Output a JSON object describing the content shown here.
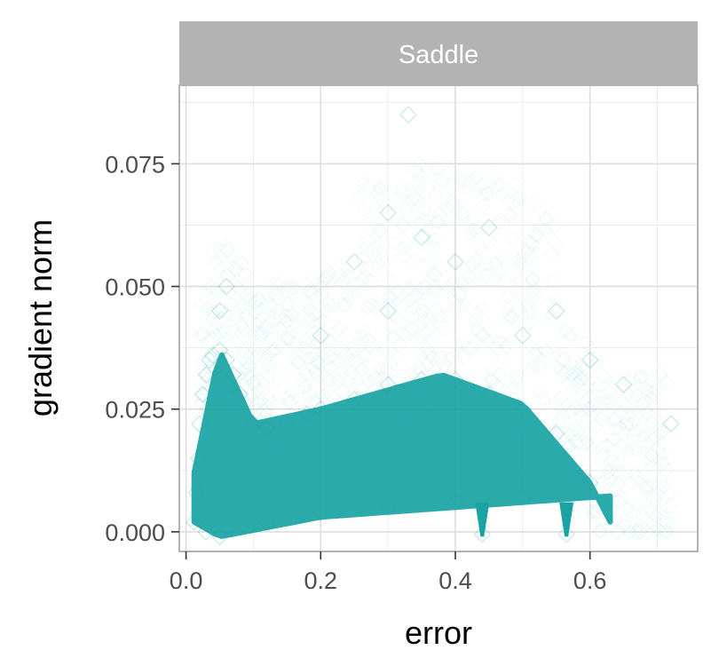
{
  "chart_data": {
    "type": "scatter",
    "facet_label": "Saddle",
    "xlabel": "error",
    "ylabel": "gradient norm",
    "xlim": [
      -0.01,
      0.76
    ],
    "ylim": [
      -0.004,
      0.091
    ],
    "x_ticks": [
      0.0,
      0.2,
      0.4,
      0.6
    ],
    "x_tick_labels": [
      "0.0",
      "0.2",
      "0.4",
      "0.6"
    ],
    "y_ticks": [
      0.0,
      0.025,
      0.05,
      0.075
    ],
    "y_tick_labels": [
      "0.000",
      "0.025",
      "0.050",
      "0.075"
    ],
    "grid": true,
    "marker": "diamond-open",
    "color": "#1aa3a3",
    "strip_color": "#b3b3b3",
    "series": [
      {
        "points": [
          [
            0.012,
            0.002
          ],
          [
            0.015,
            0.008
          ],
          [
            0.018,
            0.015
          ],
          [
            0.02,
            0.022
          ],
          [
            0.025,
            0.028
          ],
          [
            0.03,
            0.032
          ],
          [
            0.035,
            0.035
          ],
          [
            0.04,
            0.036
          ],
          [
            0.05,
            0.037
          ],
          [
            0.06,
            0.035
          ],
          [
            0.07,
            0.032
          ],
          [
            0.08,
            0.028
          ],
          [
            0.1,
            0.022
          ],
          [
            0.12,
            0.021
          ],
          [
            0.15,
            0.022
          ],
          [
            0.18,
            0.024
          ],
          [
            0.2,
            0.025
          ],
          [
            0.25,
            0.027
          ],
          [
            0.3,
            0.03
          ],
          [
            0.35,
            0.031
          ],
          [
            0.4,
            0.031
          ],
          [
            0.45,
            0.028
          ],
          [
            0.5,
            0.025
          ],
          [
            0.55,
            0.02
          ],
          [
            0.6,
            0.01
          ],
          [
            0.03,
            0.0
          ],
          [
            0.05,
            -0.001
          ],
          [
            0.08,
            0.001
          ],
          [
            0.12,
            0.002
          ],
          [
            0.2,
            0.004
          ],
          [
            0.3,
            0.005
          ],
          [
            0.4,
            0.006
          ],
          [
            0.44,
            -0.0005
          ],
          [
            0.5,
            0.007
          ],
          [
            0.565,
            -0.0005
          ],
          [
            0.05,
            0.045
          ],
          [
            0.06,
            0.05
          ],
          [
            0.3,
            0.045
          ],
          [
            0.35,
            0.06
          ],
          [
            0.4,
            0.055
          ],
          [
            0.45,
            0.062
          ],
          [
            0.5,
            0.04
          ],
          [
            0.6,
            0.035
          ],
          [
            0.65,
            0.03
          ],
          [
            0.72,
            0.022
          ],
          [
            0.33,
            0.085
          ],
          [
            0.3,
            0.065
          ],
          [
            0.55,
            0.045
          ],
          [
            0.25,
            0.055
          ],
          [
            0.2,
            0.04
          ]
        ]
      }
    ]
  }
}
